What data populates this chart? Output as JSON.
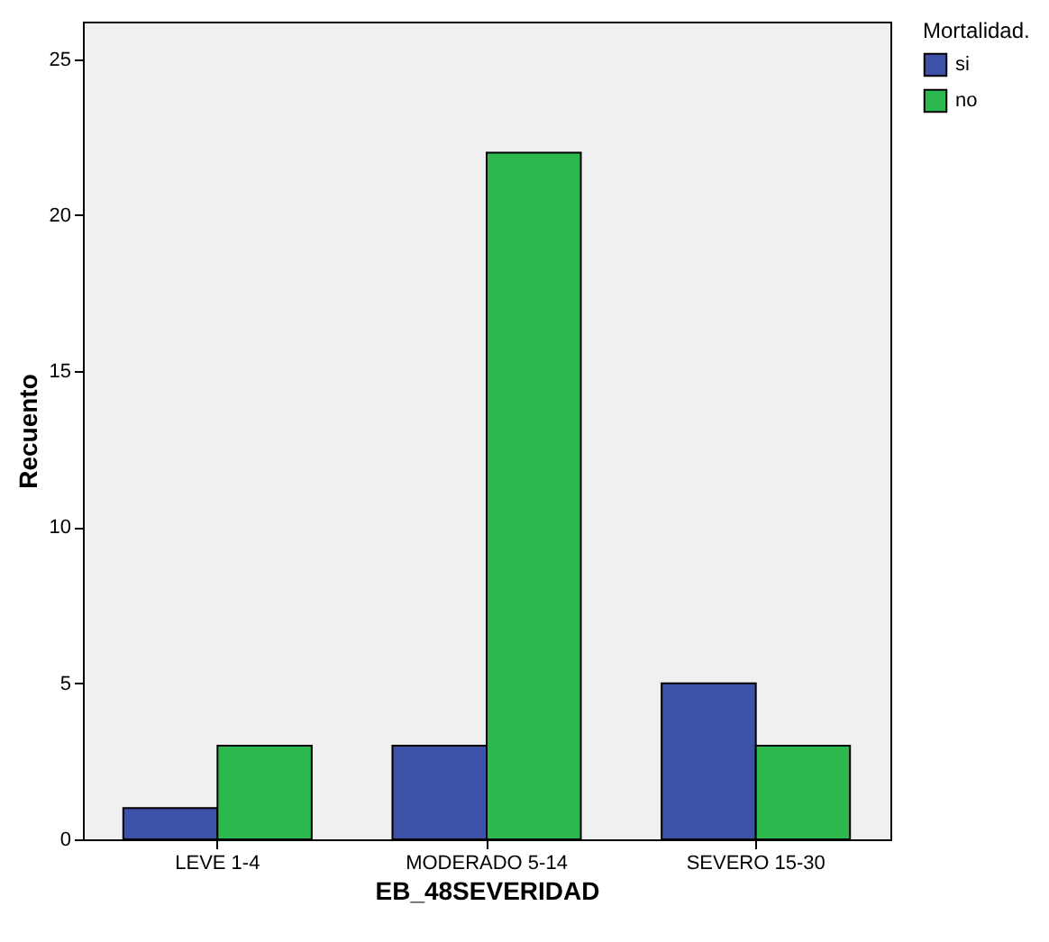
{
  "chart_data": {
    "type": "bar",
    "xlabel": "EB_48SEVERIDAD",
    "ylabel": "Recuento",
    "legend_title": "Mortalidad.",
    "categories": [
      "LEVE 1-4",
      "MODERADO 5-14",
      "SEVERO 15-30"
    ],
    "series": [
      {
        "name": "si",
        "color": "#3e51a8",
        "values": [
          1,
          3,
          5
        ]
      },
      {
        "name": "no",
        "color": "#2db84d",
        "values": [
          3,
          22,
          3
        ]
      }
    ],
    "ylim": [
      0,
      26.2
    ],
    "yticks": [
      0,
      5,
      10,
      15,
      20,
      25
    ],
    "grid": false,
    "legend": "top right"
  }
}
